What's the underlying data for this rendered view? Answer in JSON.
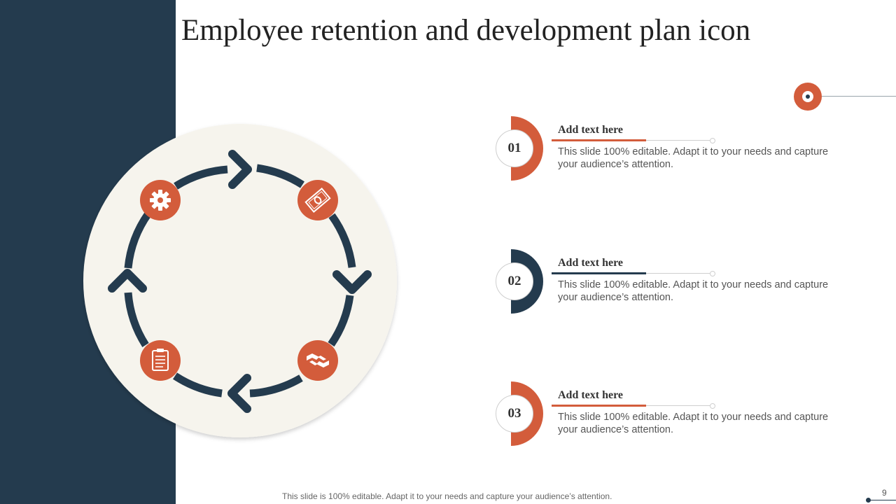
{
  "slide": {
    "title": "Employee retention and development plan icon",
    "footer": "This slide is 100% editable. Adapt it to your needs and capture your audience’s attention.",
    "page_number": "9"
  },
  "colors": {
    "navy": "#243b4e",
    "orange": "#d35c3b",
    "cream": "#f6f4ed"
  },
  "cycle": {
    "icons": [
      "gear-icon",
      "money-bill-icon",
      "handshake-icon",
      "clipboard-icon"
    ]
  },
  "items": [
    {
      "number": "01",
      "heading": "Add text here",
      "body": "This slide 100% editable. Adapt it to your needs and capture your audience’s attention.",
      "accent": "#d35c3b"
    },
    {
      "number": "02",
      "heading": "Add text here",
      "body": "This slide 100% editable. Adapt it to your needs and capture your audience’s attention.",
      "accent": "#243b4e"
    },
    {
      "number": "03",
      "heading": "Add text here",
      "body": "This slide 100% editable. Adapt it to your needs and capture your audience’s attention.",
      "accent": "#d35c3b"
    }
  ]
}
